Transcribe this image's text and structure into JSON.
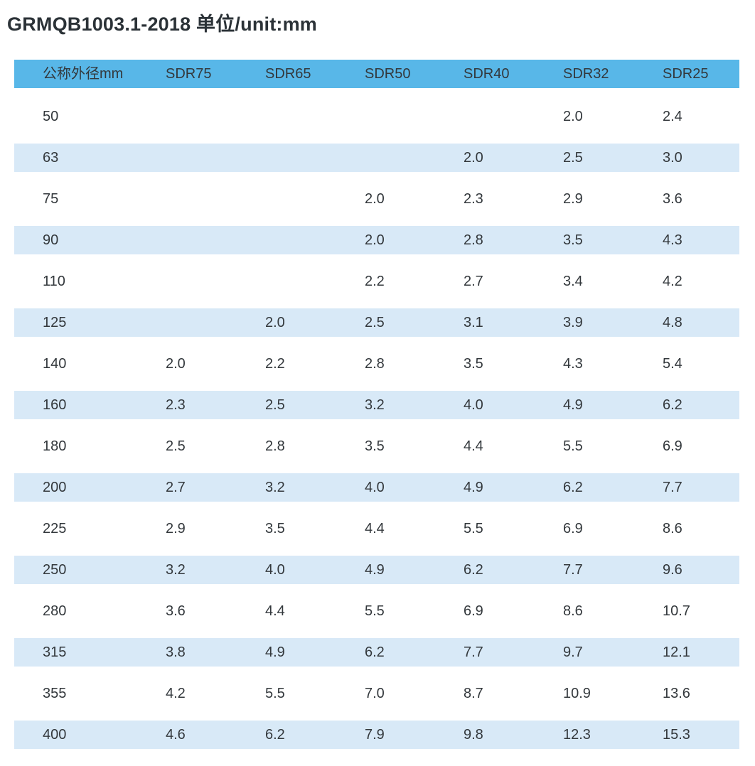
{
  "title": "GRMQB1003.1-2018  单位/unit:mm",
  "colors": {
    "header_bg": "#58b7e8",
    "stripe_bg": "#d8e9f7",
    "text": "#33383c",
    "title": "#2b3237"
  },
  "chart_data": {
    "type": "table",
    "title": "GRMQB1003.1-2018  单位/unit:mm",
    "unit": "mm",
    "columns": [
      "公称外径mm",
      "SDR75",
      "SDR65",
      "SDR50",
      "SDR40",
      "SDR32",
      "SDR25"
    ],
    "rows": [
      {
        "striped": false,
        "cells": [
          "50",
          "",
          "",
          "",
          "",
          "2.0",
          "2.4"
        ]
      },
      {
        "striped": true,
        "cells": [
          "63",
          "",
          "",
          "",
          "2.0",
          "2.5",
          "3.0"
        ]
      },
      {
        "striped": false,
        "cells": [
          "75",
          "",
          "",
          "2.0",
          "2.3",
          "2.9",
          "3.6"
        ]
      },
      {
        "striped": true,
        "cells": [
          "90",
          "",
          "",
          "2.0",
          "2.8",
          "3.5",
          "4.3"
        ]
      },
      {
        "striped": false,
        "cells": [
          "110",
          "",
          "",
          "2.2",
          "2.7",
          "3.4",
          "4.2"
        ]
      },
      {
        "striped": true,
        "cells": [
          "125",
          "",
          "2.0",
          "2.5",
          "3.1",
          "3.9",
          "4.8"
        ]
      },
      {
        "striped": false,
        "cells": [
          "140",
          "2.0",
          "2.2",
          "2.8",
          "3.5",
          "4.3",
          "5.4"
        ]
      },
      {
        "striped": true,
        "cells": [
          "160",
          "2.3",
          "2.5",
          "3.2",
          "4.0",
          "4.9",
          "6.2"
        ]
      },
      {
        "striped": false,
        "cells": [
          "180",
          "2.5",
          "2.8",
          "3.5",
          "4.4",
          "5.5",
          "6.9"
        ]
      },
      {
        "striped": true,
        "cells": [
          "200",
          "2.7",
          "3.2",
          "4.0",
          "4.9",
          "6.2",
          "7.7"
        ]
      },
      {
        "striped": false,
        "cells": [
          "225",
          "2.9",
          "3.5",
          "4.4",
          "5.5",
          "6.9",
          "8.6"
        ]
      },
      {
        "striped": true,
        "cells": [
          "250",
          "3.2",
          "4.0",
          "4.9",
          "6.2",
          "7.7",
          "9.6"
        ]
      },
      {
        "striped": false,
        "cells": [
          "280",
          "3.6",
          "4.4",
          "5.5",
          "6.9",
          "8.6",
          "10.7"
        ]
      },
      {
        "striped": true,
        "cells": [
          "315",
          "3.8",
          "4.9",
          "6.2",
          "7.7",
          "9.7",
          "12.1"
        ]
      },
      {
        "striped": false,
        "cells": [
          "355",
          "4.2",
          "5.5",
          "7.0",
          "8.7",
          "10.9",
          "13.6"
        ]
      },
      {
        "striped": true,
        "cells": [
          "400",
          "4.6",
          "6.2",
          "7.9",
          "9.8",
          "12.3",
          "15.3"
        ]
      }
    ]
  }
}
